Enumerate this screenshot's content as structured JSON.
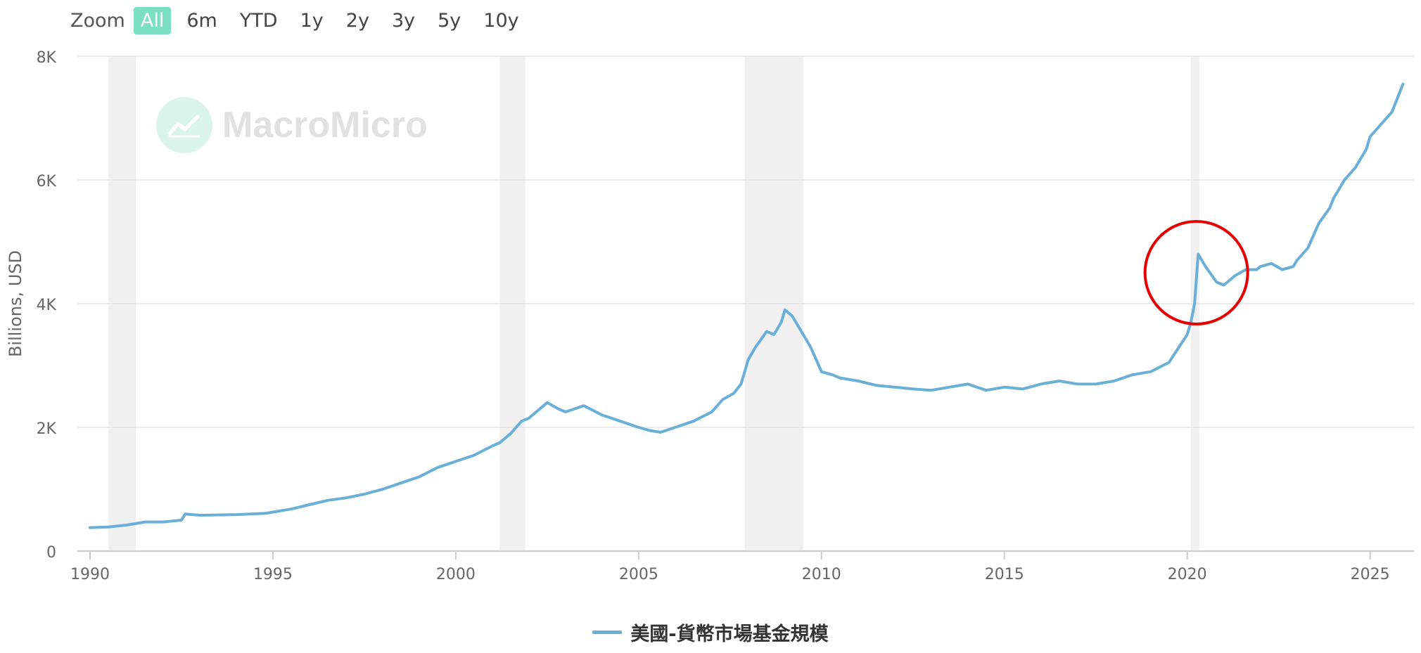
{
  "zoom": {
    "label": "Zoom",
    "buttons": [
      "All",
      "6m",
      "YTD",
      "1y",
      "2y",
      "3y",
      "5y",
      "10y"
    ],
    "active": "All"
  },
  "watermark": {
    "text": "MacroMicro",
    "icon": "chart-logo-icon"
  },
  "colors": {
    "accent": "#7be0c3",
    "line": "#6aafd7",
    "recession": "#f0f0f0",
    "highlight": "#e60000",
    "grid": "#e6e6e6"
  },
  "chart_data": {
    "type": "line",
    "ylabel": "Billions, USD",
    "ylim": [
      0,
      8000
    ],
    "yticks": [
      0,
      2000,
      4000,
      6000,
      8000
    ],
    "ytick_labels": [
      "0",
      "2K",
      "4K",
      "6K",
      "8K"
    ],
    "xlim": [
      1990,
      2026.2
    ],
    "xticks": [
      1990,
      1995,
      2000,
      2005,
      2010,
      2015,
      2020,
      2025
    ],
    "xtick_labels": [
      "1990",
      "1995",
      "2000",
      "2005",
      "2010",
      "2015",
      "2020",
      "2025"
    ],
    "grid": true,
    "legend_position": "bottom-center",
    "recessions": [
      [
        1990.5,
        1991.25
      ],
      [
        2001.2,
        2001.9
      ],
      [
        2007.9,
        2009.5
      ],
      [
        2020.1,
        2020.33
      ]
    ],
    "highlight_circle": {
      "x": 2020.25,
      "y": 4500
    },
    "series": [
      {
        "name": "美國-貨幣市場基金規模",
        "x": [
          1990.0,
          1990.5,
          1991.0,
          1991.5,
          1992.0,
          1992.5,
          1992.6,
          1993.0,
          1994.0,
          1994.8,
          1995.5,
          1996.0,
          1996.5,
          1997.0,
          1997.5,
          1998.0,
          1998.5,
          1999.0,
          1999.5,
          2000.0,
          2000.5,
          2001.0,
          2001.2,
          2001.5,
          2001.8,
          2002.0,
          2002.5,
          2002.8,
          2003.0,
          2003.5,
          2004.0,
          2004.5,
          2005.0,
          2005.3,
          2005.6,
          2006.0,
          2006.5,
          2007.0,
          2007.3,
          2007.6,
          2007.8,
          2008.0,
          2008.2,
          2008.5,
          2008.7,
          2008.9,
          2009.0,
          2009.2,
          2009.5,
          2009.7,
          2010.0,
          2010.3,
          2010.5,
          2011.0,
          2011.5,
          2012.0,
          2012.5,
          2013.0,
          2013.5,
          2014.0,
          2014.5,
          2015.0,
          2015.5,
          2016.0,
          2016.5,
          2017.0,
          2017.5,
          2018.0,
          2018.5,
          2019.0,
          2019.5,
          2020.0,
          2020.1,
          2020.2,
          2020.3,
          2020.5,
          2020.8,
          2021.0,
          2021.3,
          2021.6,
          2021.9,
          2022.0,
          2022.3,
          2022.6,
          2022.9,
          2023.0,
          2023.3,
          2023.6,
          2023.9,
          2024.0,
          2024.3,
          2024.6,
          2024.9,
          2025.0,
          2025.3,
          2025.6,
          2025.9
        ],
        "values": [
          380,
          390,
          420,
          470,
          470,
          500,
          600,
          580,
          590,
          610,
          680,
          750,
          820,
          860,
          920,
          1000,
          1100,
          1200,
          1350,
          1450,
          1550,
          1700,
          1750,
          1900,
          2100,
          2150,
          2400,
          2300,
          2250,
          2350,
          2200,
          2100,
          2000,
          1950,
          1920,
          2000,
          2100,
          2250,
          2450,
          2550,
          2700,
          3100,
          3300,
          3550,
          3500,
          3700,
          3900,
          3800,
          3500,
          3300,
          2900,
          2850,
          2800,
          2750,
          2680,
          2650,
          2620,
          2600,
          2650,
          2700,
          2600,
          2650,
          2620,
          2700,
          2750,
          2700,
          2700,
          2750,
          2850,
          2900,
          3050,
          3500,
          3700,
          4000,
          4800,
          4600,
          4350,
          4300,
          4450,
          4550,
          4550,
          4600,
          4650,
          4550,
          4600,
          4700,
          4900,
          5300,
          5550,
          5700,
          6000,
          6200,
          6500,
          6700,
          6900,
          7100,
          7550
        ]
      }
    ]
  }
}
